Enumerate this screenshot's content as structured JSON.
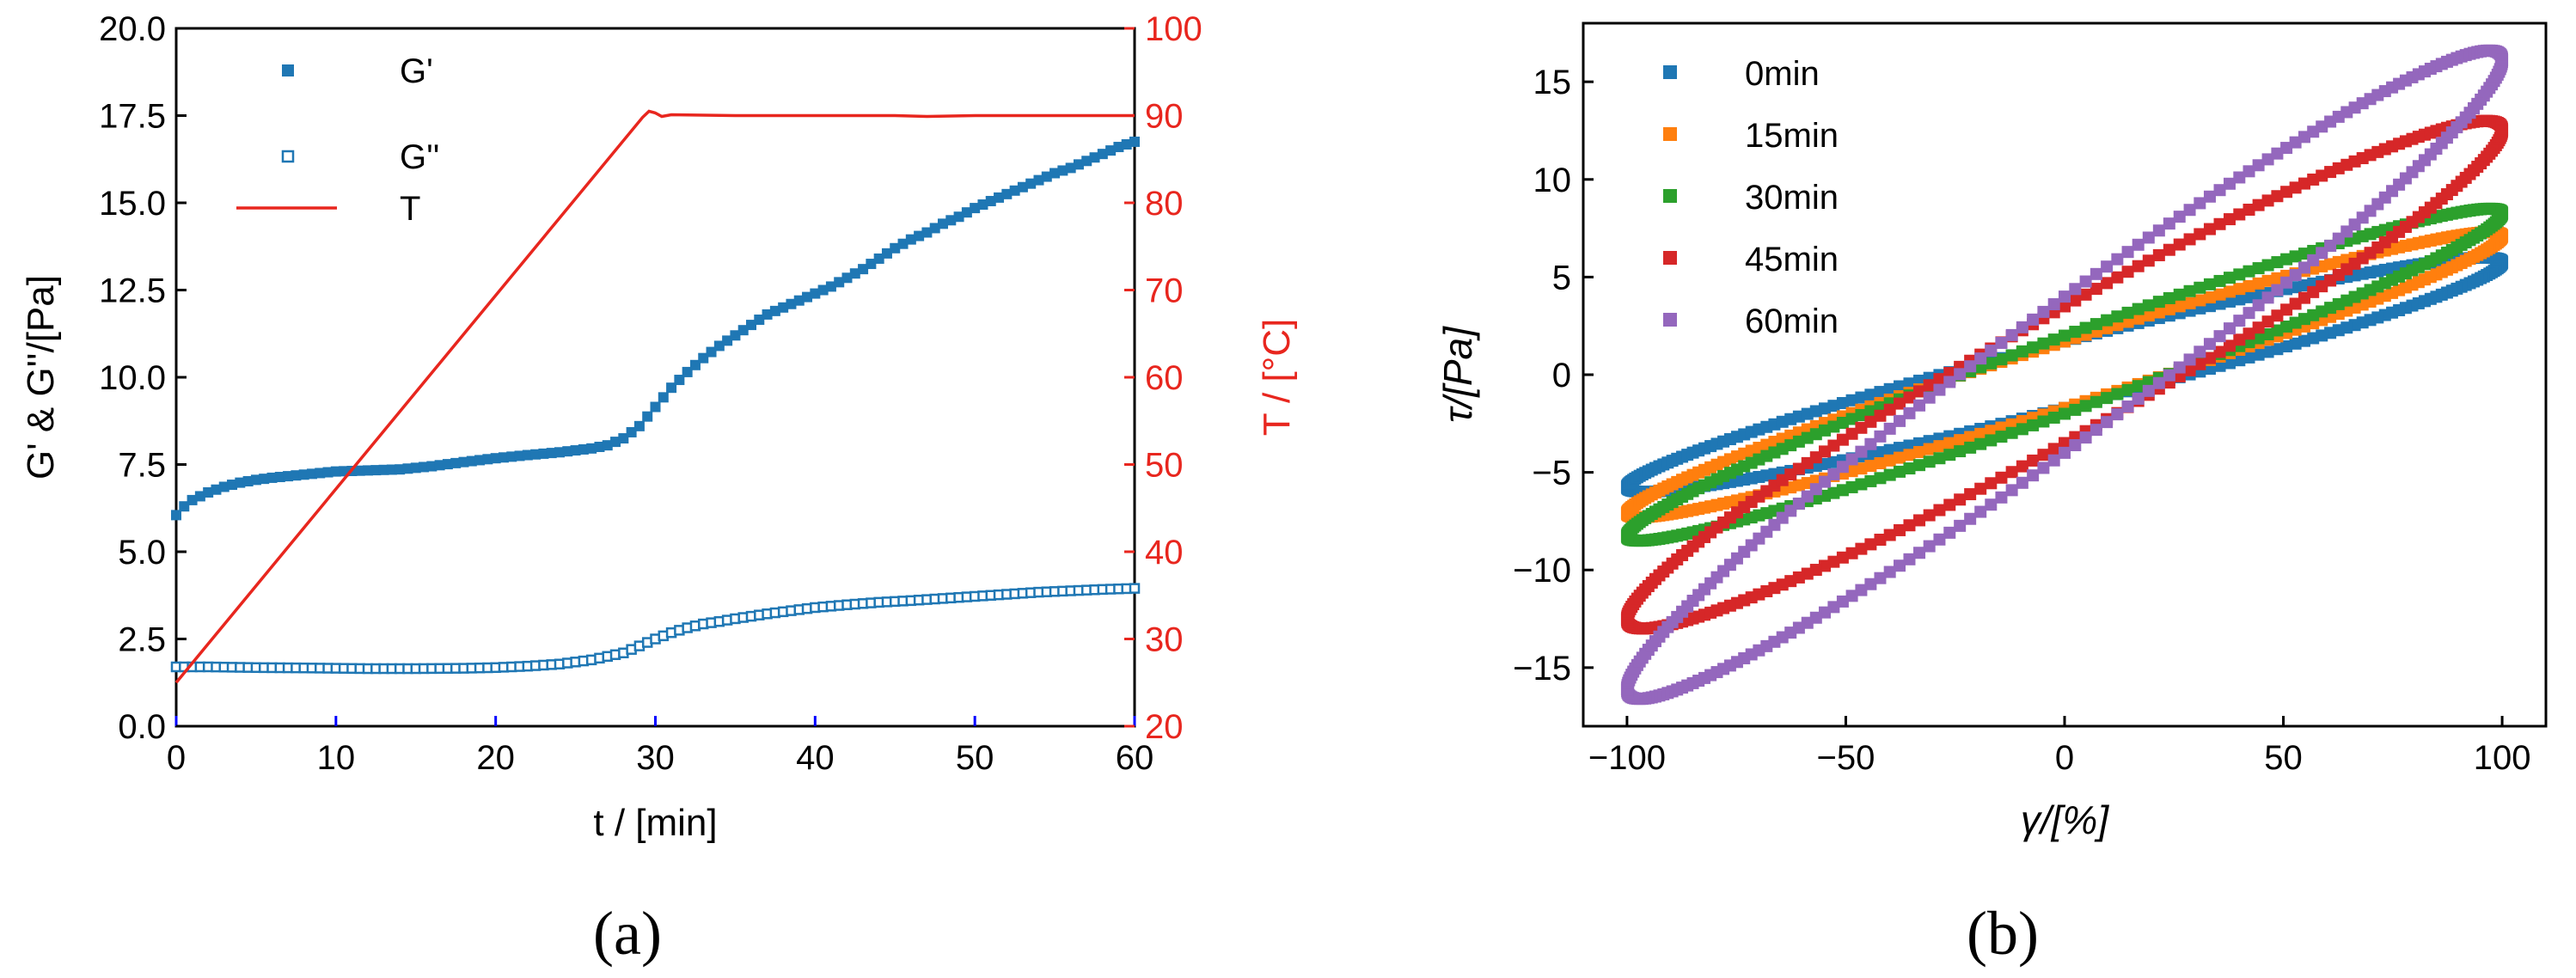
{
  "chart_data": [
    {
      "type": "line",
      "panel_label": "a",
      "xlabel": "t / [min]",
      "ylabel": "G' & G''/[Pa]",
      "y2label": "T / [°C]",
      "xlim": [
        0,
        60
      ],
      "ylim": [
        0,
        20
      ],
      "y2lim": [
        20,
        100
      ],
      "xticks": [
        "0",
        "10",
        "20",
        "30",
        "40",
        "50",
        "60"
      ],
      "yticks": [
        "0.0",
        "2.5",
        "5.0",
        "7.5",
        "10.0",
        "12.5",
        "15.0",
        "17.5",
        "20.0"
      ],
      "y2ticks": [
        "20",
        "30",
        "40",
        "50",
        "60",
        "70",
        "80",
        "90",
        "100"
      ],
      "legend_position": "top-left",
      "colors": {
        "G1": "#1f77b4",
        "G2": "#1f77b4",
        "T": "#e8261e",
        "axis2": "#e8261e"
      },
      "series": [
        {
          "name": "G'",
          "marker": "filled-square",
          "axis": "left",
          "x": [
            0,
            0.5,
            1,
            2,
            3,
            4,
            5,
            6,
            8,
            10,
            12,
            14,
            16,
            18,
            20,
            22,
            24,
            26,
            27,
            28,
            29,
            30,
            31,
            32,
            33,
            34,
            35,
            36,
            37,
            38,
            39,
            40,
            41,
            42,
            43,
            44,
            45,
            46,
            47,
            48,
            49,
            50,
            51,
            52,
            53,
            54,
            55,
            56,
            57,
            58,
            59,
            60
          ],
          "y": [
            6.05,
            6.3,
            6.48,
            6.7,
            6.86,
            6.98,
            7.06,
            7.12,
            7.21,
            7.3,
            7.33,
            7.36,
            7.45,
            7.57,
            7.68,
            7.77,
            7.85,
            7.96,
            8.05,
            8.25,
            8.6,
            9.15,
            9.7,
            10.15,
            10.55,
            10.9,
            11.2,
            11.5,
            11.8,
            12.0,
            12.2,
            12.4,
            12.6,
            12.85,
            13.1,
            13.4,
            13.7,
            13.95,
            14.15,
            14.4,
            14.6,
            14.85,
            15.05,
            15.25,
            15.45,
            15.65,
            15.85,
            16.0,
            16.2,
            16.4,
            16.6,
            16.75
          ]
        },
        {
          "name": "G''",
          "marker": "open-square",
          "axis": "left",
          "x": [
            0,
            2,
            5,
            8,
            10,
            12,
            15,
            18,
            20,
            22,
            24,
            26,
            27,
            28,
            29,
            30,
            31,
            32,
            33,
            34,
            35,
            36,
            37,
            38,
            39,
            40,
            42,
            44,
            46,
            48,
            50,
            52,
            54,
            56,
            58,
            60
          ],
          "y": [
            1.7,
            1.7,
            1.68,
            1.67,
            1.66,
            1.65,
            1.65,
            1.66,
            1.68,
            1.72,
            1.78,
            1.9,
            2.0,
            2.1,
            2.3,
            2.5,
            2.68,
            2.82,
            2.93,
            3.0,
            3.08,
            3.15,
            3.22,
            3.28,
            3.34,
            3.4,
            3.48,
            3.55,
            3.6,
            3.66,
            3.72,
            3.78,
            3.84,
            3.88,
            3.92,
            3.95
          ]
        },
        {
          "name": "T",
          "marker": "line",
          "axis": "right",
          "x": [
            0,
            29.2,
            29.6,
            30.0,
            30.4,
            31,
            35,
            45,
            47,
            50,
            60
          ],
          "y": [
            25,
            89.8,
            90.5,
            90.3,
            89.9,
            90.1,
            90,
            90,
            89.9,
            90,
            90
          ]
        }
      ]
    },
    {
      "type": "scatter",
      "panel_label": "b",
      "xlabel": "γ/[%]",
      "ylabel": "τ/[Pa]",
      "xlim": [
        -110,
        110
      ],
      "ylim": [
        -18,
        18
      ],
      "xticks": [
        "−100",
        "−50",
        "0",
        "50",
        "100"
      ],
      "yticks": [
        "−15",
        "−10",
        "−5",
        "0",
        "5",
        "10",
        "15"
      ],
      "legend_position": "top-left",
      "description_of_shape": "Lissajous loops: stress vs strain over one oscillation cycle, strain amplitude 100%",
      "series": [
        {
          "name": "0min",
          "color": "#1f77b4",
          "strain_amplitude": 100,
          "stress_amplitude": 6.0,
          "stress_at_zero_strain": 1.7
        },
        {
          "name": "15min",
          "color": "#ff7f0e",
          "strain_amplitude": 100,
          "stress_amplitude": 7.3,
          "stress_at_zero_strain": 1.7
        },
        {
          "name": "30min",
          "color": "#2ca02c",
          "strain_amplitude": 100,
          "stress_amplitude": 8.5,
          "stress_at_zero_strain": 2.0
        },
        {
          "name": "45min",
          "color": "#d62728",
          "strain_amplitude": 100,
          "stress_amplitude": 13.0,
          "stress_at_zero_strain": 3.5
        },
        {
          "name": "60min",
          "color": "#9467bd",
          "strain_amplitude": 100,
          "stress_amplitude": 16.6,
          "stress_at_zero_strain": 4.0
        }
      ]
    }
  ],
  "captions": {
    "a": "(a)",
    "b": "(b)"
  }
}
